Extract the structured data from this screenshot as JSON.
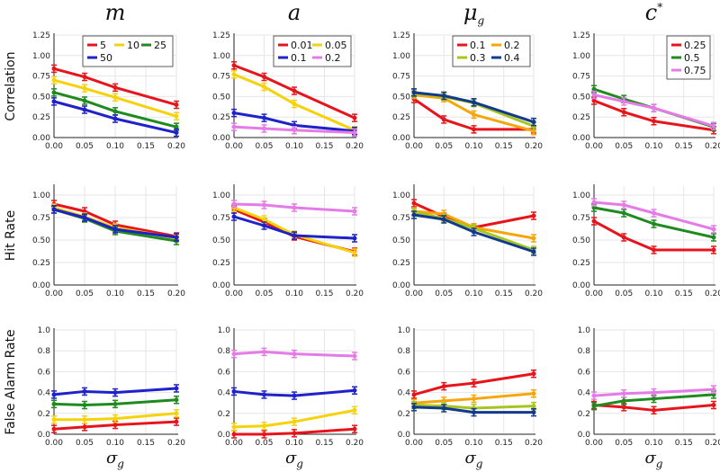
{
  "colors": {
    "red": "#e8141b",
    "yellow": "#f5d20a",
    "green": "#1f8a1f",
    "blue": "#1e22c8",
    "orange": "#f5a60a",
    "lime": "#a6c51f",
    "navy": "#123a8c",
    "pink": "#e57be6"
  },
  "columns": [
    {
      "symbol": "m",
      "sub": "",
      "sup": ""
    },
    {
      "symbol": "a",
      "sub": "",
      "sup": ""
    },
    {
      "symbol": "μ",
      "sub": "g",
      "sup": ""
    },
    {
      "symbol": "c",
      "sub": "",
      "sup": "*"
    }
  ],
  "rows": [
    {
      "label": "Correlation",
      "ylim": [
        0,
        1.25
      ],
      "yticks": [
        "0.00",
        "0.25",
        "0.50",
        "0.75",
        "1.00",
        "1.25"
      ]
    },
    {
      "label": "Hit Rate",
      "ylim": [
        0,
        1.1
      ],
      "yticks": [
        "0.00",
        "0.25",
        "0.50",
        "0.75",
        "1.00"
      ]
    },
    {
      "label": "False Alarm Rate",
      "ylim": [
        0,
        1.0
      ],
      "yticks": [
        "0.0",
        "0.2",
        "0.4",
        "0.6",
        "0.8",
        "1.0"
      ]
    }
  ],
  "xlabel": {
    "symbol": "σ",
    "sub": "g"
  },
  "chart_data": [
    {
      "type": "line",
      "row": 0,
      "col": 0,
      "x": [
        0.0,
        0.05,
        0.1,
        0.2
      ],
      "xlim": [
        0,
        0.2
      ],
      "xticks": [
        "0.00",
        "0.05",
        "0.10",
        "0.15",
        "0.20"
      ],
      "legend": {
        "placement": "top-right",
        "layout": [
          [
            "5",
            "10",
            "25"
          ],
          [
            "50"
          ]
        ]
      },
      "series": [
        {
          "name": "5",
          "color": "red",
          "values": [
            0.84,
            0.74,
            0.61,
            0.4
          ]
        },
        {
          "name": "10",
          "color": "yellow",
          "values": [
            0.7,
            0.6,
            0.49,
            0.26
          ]
        },
        {
          "name": "25",
          "color": "green",
          "values": [
            0.55,
            0.45,
            0.32,
            0.13
          ]
        },
        {
          "name": "50",
          "color": "blue",
          "values": [
            0.44,
            0.34,
            0.23,
            0.06
          ]
        }
      ]
    },
    {
      "type": "line",
      "row": 0,
      "col": 1,
      "x": [
        0.0,
        0.05,
        0.1,
        0.2
      ],
      "xlim": [
        0,
        0.2
      ],
      "xticks": [
        "0.00",
        "0.05",
        "0.10",
        "0.15",
        "0.20"
      ],
      "legend": {
        "placement": "top-right",
        "layout": [
          [
            "0.01",
            "0.05"
          ],
          [
            "0.1",
            "0.2"
          ]
        ]
      },
      "series": [
        {
          "name": "0.01",
          "color": "red",
          "values": [
            0.88,
            0.74,
            0.57,
            0.24
          ]
        },
        {
          "name": "0.05",
          "color": "yellow",
          "values": [
            0.77,
            0.62,
            0.41,
            0.09
          ]
        },
        {
          "name": "0.1",
          "color": "blue",
          "values": [
            0.3,
            0.24,
            0.15,
            0.08
          ]
        },
        {
          "name": "0.2",
          "color": "pink",
          "values": [
            0.13,
            0.11,
            0.09,
            0.06
          ]
        }
      ]
    },
    {
      "type": "line",
      "row": 0,
      "col": 2,
      "x": [
        0.0,
        0.05,
        0.1,
        0.2
      ],
      "xlim": [
        0,
        0.2
      ],
      "xticks": [
        "0.00",
        "0.05",
        "0.10",
        "0.15",
        "0.20"
      ],
      "legend": {
        "placement": "top-right",
        "layout": [
          [
            "0.1",
            "0.2"
          ],
          [
            "0.3",
            "0.4"
          ]
        ]
      },
      "series": [
        {
          "name": "0.1",
          "color": "red",
          "values": [
            0.47,
            0.22,
            0.1,
            0.1
          ]
        },
        {
          "name": "0.2",
          "color": "orange",
          "values": [
            0.52,
            0.48,
            0.28,
            0.08
          ]
        },
        {
          "name": "0.3",
          "color": "lime",
          "values": [
            0.54,
            0.5,
            0.42,
            0.14
          ]
        },
        {
          "name": "0.4",
          "color": "navy",
          "values": [
            0.55,
            0.51,
            0.43,
            0.19
          ]
        }
      ]
    },
    {
      "type": "line",
      "row": 0,
      "col": 3,
      "x": [
        0.0,
        0.05,
        0.1,
        0.2
      ],
      "xlim": [
        0,
        0.2
      ],
      "xticks": [
        "0.00",
        "0.05",
        "0.10",
        "0.15",
        "0.20"
      ],
      "legend": {
        "placement": "top-right",
        "layout": [
          [
            "0.25"
          ],
          [
            "0.5"
          ],
          [
            "0.75"
          ]
        ]
      },
      "series": [
        {
          "name": "0.25",
          "color": "red",
          "values": [
            0.45,
            0.31,
            0.2,
            0.09
          ]
        },
        {
          "name": "0.5",
          "color": "green",
          "values": [
            0.59,
            0.47,
            0.36,
            0.13
          ]
        },
        {
          "name": "0.75",
          "color": "pink",
          "values": [
            0.52,
            0.44,
            0.36,
            0.14
          ]
        }
      ]
    },
    {
      "type": "line",
      "row": 1,
      "col": 0,
      "x": [
        0.0,
        0.05,
        0.1,
        0.2
      ],
      "xlim": [
        0,
        0.2
      ],
      "xticks": [
        "0.00",
        "0.05",
        "0.10",
        "0.15",
        "0.20"
      ],
      "series": [
        {
          "name": "5",
          "color": "red",
          "values": [
            0.9,
            0.82,
            0.67,
            0.54
          ]
        },
        {
          "name": "10",
          "color": "yellow",
          "values": [
            0.86,
            0.76,
            0.64,
            0.52
          ]
        },
        {
          "name": "25",
          "color": "green",
          "values": [
            0.84,
            0.74,
            0.6,
            0.49
          ]
        },
        {
          "name": "50",
          "color": "blue",
          "values": [
            0.84,
            0.75,
            0.62,
            0.53
          ]
        }
      ]
    },
    {
      "type": "line",
      "row": 1,
      "col": 1,
      "x": [
        0.0,
        0.05,
        0.1,
        0.2
      ],
      "xlim": [
        0,
        0.2
      ],
      "xticks": [
        "0.00",
        "0.05",
        "0.10",
        "0.15",
        "0.20"
      ],
      "series": [
        {
          "name": "0.01",
          "color": "red",
          "values": [
            0.84,
            0.7,
            0.54,
            0.37
          ]
        },
        {
          "name": "0.05",
          "color": "yellow",
          "values": [
            0.86,
            0.73,
            0.56,
            0.36
          ]
        },
        {
          "name": "0.1",
          "color": "blue",
          "values": [
            0.76,
            0.66,
            0.55,
            0.52
          ]
        },
        {
          "name": "0.2",
          "color": "pink",
          "values": [
            0.9,
            0.89,
            0.86,
            0.82
          ]
        }
      ]
    },
    {
      "type": "line",
      "row": 1,
      "col": 2,
      "x": [
        0.0,
        0.05,
        0.1,
        0.2
      ],
      "xlim": [
        0,
        0.2
      ],
      "xticks": [
        "0.00",
        "0.05",
        "0.10",
        "0.15",
        "0.20"
      ],
      "series": [
        {
          "name": "0.1",
          "color": "red",
          "values": [
            0.91,
            0.76,
            0.64,
            0.77
          ]
        },
        {
          "name": "0.2",
          "color": "orange",
          "values": [
            0.82,
            0.79,
            0.64,
            0.52
          ]
        },
        {
          "name": "0.3",
          "color": "lime",
          "values": [
            0.81,
            0.74,
            0.63,
            0.39
          ]
        },
        {
          "name": "0.4",
          "color": "navy",
          "values": [
            0.78,
            0.73,
            0.59,
            0.37
          ]
        }
      ]
    },
    {
      "type": "line",
      "row": 1,
      "col": 3,
      "x": [
        0.0,
        0.05,
        0.1,
        0.2
      ],
      "xlim": [
        0,
        0.2
      ],
      "xticks": [
        "0.00",
        "0.05",
        "0.10",
        "0.15",
        "0.20"
      ],
      "series": [
        {
          "name": "0.25",
          "color": "red",
          "values": [
            0.71,
            0.53,
            0.39,
            0.39
          ]
        },
        {
          "name": "0.5",
          "color": "green",
          "values": [
            0.86,
            0.8,
            0.68,
            0.53
          ]
        },
        {
          "name": "0.75",
          "color": "pink",
          "values": [
            0.92,
            0.89,
            0.8,
            0.62
          ]
        }
      ]
    },
    {
      "type": "line",
      "row": 2,
      "col": 0,
      "x": [
        0.0,
        0.05,
        0.1,
        0.2
      ],
      "xlim": [
        0,
        0.2
      ],
      "xticks": [
        "0.00",
        "0.05",
        "0.10",
        "0.15",
        "0.20"
      ],
      "series": [
        {
          "name": "5",
          "color": "red",
          "values": [
            0.05,
            0.07,
            0.09,
            0.12
          ]
        },
        {
          "name": "10",
          "color": "yellow",
          "values": [
            0.14,
            0.14,
            0.15,
            0.2
          ]
        },
        {
          "name": "25",
          "color": "green",
          "values": [
            0.29,
            0.28,
            0.29,
            0.33
          ]
        },
        {
          "name": "50",
          "color": "blue",
          "values": [
            0.38,
            0.41,
            0.4,
            0.44
          ]
        }
      ]
    },
    {
      "type": "line",
      "row": 2,
      "col": 1,
      "x": [
        0.0,
        0.05,
        0.1,
        0.2
      ],
      "xlim": [
        0,
        0.2
      ],
      "xticks": [
        "0.00",
        "0.05",
        "0.10",
        "0.15",
        "0.20"
      ],
      "series": [
        {
          "name": "0.01",
          "color": "red",
          "values": [
            0.0,
            0.0,
            0.01,
            0.05
          ]
        },
        {
          "name": "0.05",
          "color": "yellow",
          "values": [
            0.07,
            0.08,
            0.12,
            0.23
          ]
        },
        {
          "name": "0.1",
          "color": "blue",
          "values": [
            0.41,
            0.38,
            0.37,
            0.42
          ]
        },
        {
          "name": "0.2",
          "color": "pink",
          "values": [
            0.77,
            0.79,
            0.77,
            0.75
          ]
        }
      ]
    },
    {
      "type": "line",
      "row": 2,
      "col": 2,
      "x": [
        0.0,
        0.05,
        0.1,
        0.2
      ],
      "xlim": [
        0,
        0.2
      ],
      "xticks": [
        "0.00",
        "0.05",
        "0.10",
        "0.15",
        "0.20"
      ],
      "series": [
        {
          "name": "0.1",
          "color": "red",
          "values": [
            0.38,
            0.46,
            0.49,
            0.58
          ]
        },
        {
          "name": "0.2",
          "color": "orange",
          "values": [
            0.3,
            0.32,
            0.34,
            0.39
          ]
        },
        {
          "name": "0.3",
          "color": "lime",
          "values": [
            0.28,
            0.27,
            0.25,
            0.27
          ]
        },
        {
          "name": "0.4",
          "color": "navy",
          "values": [
            0.26,
            0.25,
            0.21,
            0.21
          ]
        }
      ]
    },
    {
      "type": "line",
      "row": 2,
      "col": 3,
      "x": [
        0.0,
        0.05,
        0.1,
        0.2
      ],
      "xlim": [
        0,
        0.2
      ],
      "xticks": [
        "0.00",
        "0.05",
        "0.10",
        "0.15",
        "0.20"
      ],
      "series": [
        {
          "name": "0.25",
          "color": "red",
          "values": [
            0.28,
            0.26,
            0.23,
            0.28
          ]
        },
        {
          "name": "0.5",
          "color": "green",
          "values": [
            0.27,
            0.32,
            0.34,
            0.38
          ]
        },
        {
          "name": "0.75",
          "color": "pink",
          "values": [
            0.37,
            0.39,
            0.4,
            0.43
          ]
        }
      ]
    }
  ]
}
